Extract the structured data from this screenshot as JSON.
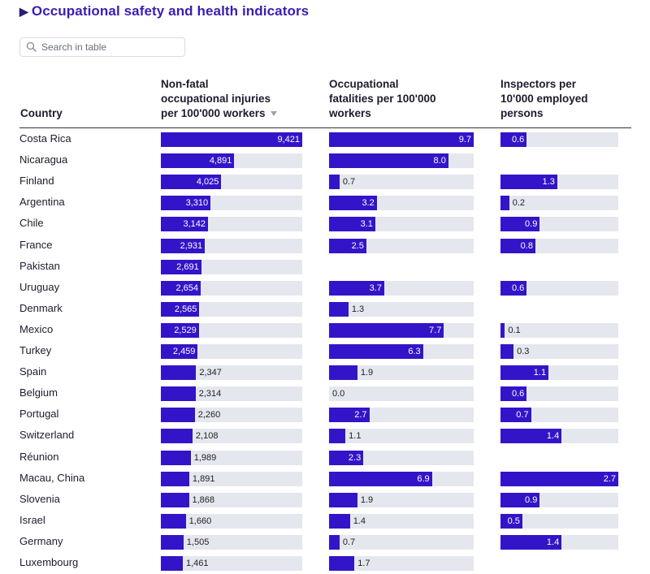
{
  "title": "Occupational safety and health indicators",
  "search": {
    "placeholder": "Search in table"
  },
  "headers": {
    "country": "Country",
    "injuries": [
      "Non-fatal",
      "occupational injuries",
      "per 100'000 workers"
    ],
    "fatalities": [
      "Occupational",
      "fatalities per 100'000",
      "workers"
    ],
    "inspectors": [
      "Inspectors per",
      "10'000 employed",
      "persons"
    ]
  },
  "rows": [
    {
      "country": "Costa Rica",
      "injuries": 9421,
      "injuries_label": "9,421",
      "fatalities": 9.7,
      "fatalities_label": "9.7",
      "inspectors": 0.6,
      "inspectors_label": "0.6"
    },
    {
      "country": "Nicaragua",
      "injuries": 4891,
      "injuries_label": "4,891",
      "fatalities": 8.0,
      "fatalities_label": "8.0",
      "inspectors": null,
      "inspectors_label": ""
    },
    {
      "country": "Finland",
      "injuries": 4025,
      "injuries_label": "4,025",
      "fatalities": 0.7,
      "fatalities_label": "0.7",
      "inspectors": 1.3,
      "inspectors_label": "1.3"
    },
    {
      "country": "Argentina",
      "injuries": 3310,
      "injuries_label": "3,310",
      "fatalities": 3.2,
      "fatalities_label": "3.2",
      "inspectors": 0.2,
      "inspectors_label": "0.2"
    },
    {
      "country": "Chile",
      "injuries": 3142,
      "injuries_label": "3,142",
      "fatalities": 3.1,
      "fatalities_label": "3.1",
      "inspectors": 0.9,
      "inspectors_label": "0.9"
    },
    {
      "country": "France",
      "injuries": 2931,
      "injuries_label": "2,931",
      "fatalities": 2.5,
      "fatalities_label": "2.5",
      "inspectors": 0.8,
      "inspectors_label": "0.8"
    },
    {
      "country": "Pakistan",
      "injuries": 2691,
      "injuries_label": "2,691",
      "fatalities": null,
      "fatalities_label": "",
      "inspectors": null,
      "inspectors_label": ""
    },
    {
      "country": "Uruguay",
      "injuries": 2654,
      "injuries_label": "2,654",
      "fatalities": 3.7,
      "fatalities_label": "3.7",
      "inspectors": 0.6,
      "inspectors_label": "0.6"
    },
    {
      "country": "Denmark",
      "injuries": 2565,
      "injuries_label": "2,565",
      "fatalities": 1.3,
      "fatalities_label": "1.3",
      "inspectors": null,
      "inspectors_label": ""
    },
    {
      "country": "Mexico",
      "injuries": 2529,
      "injuries_label": "2,529",
      "fatalities": 7.7,
      "fatalities_label": "7.7",
      "inspectors": 0.1,
      "inspectors_label": "0.1"
    },
    {
      "country": "Turkey",
      "injuries": 2459,
      "injuries_label": "2,459",
      "fatalities": 6.3,
      "fatalities_label": "6.3",
      "inspectors": 0.3,
      "inspectors_label": "0.3"
    },
    {
      "country": "Spain",
      "injuries": 2347,
      "injuries_label": "2,347",
      "fatalities": 1.9,
      "fatalities_label": "1.9",
      "inspectors": 1.1,
      "inspectors_label": "1.1"
    },
    {
      "country": "Belgium",
      "injuries": 2314,
      "injuries_label": "2,314",
      "fatalities": 0.0,
      "fatalities_label": "0.0",
      "inspectors": 0.6,
      "inspectors_label": "0.6"
    },
    {
      "country": "Portugal",
      "injuries": 2260,
      "injuries_label": "2,260",
      "fatalities": 2.7,
      "fatalities_label": "2.7",
      "inspectors": 0.7,
      "inspectors_label": "0.7"
    },
    {
      "country": "Switzerland",
      "injuries": 2108,
      "injuries_label": "2,108",
      "fatalities": 1.1,
      "fatalities_label": "1.1",
      "inspectors": 1.4,
      "inspectors_label": "1.4"
    },
    {
      "country": "Réunion",
      "injuries": 1989,
      "injuries_label": "1,989",
      "fatalities": 2.3,
      "fatalities_label": "2.3",
      "inspectors": null,
      "inspectors_label": ""
    },
    {
      "country": "Macau, China",
      "injuries": 1891,
      "injuries_label": "1,891",
      "fatalities": 6.9,
      "fatalities_label": "6.9",
      "inspectors": 2.7,
      "inspectors_label": "2.7"
    },
    {
      "country": "Slovenia",
      "injuries": 1868,
      "injuries_label": "1,868",
      "fatalities": 1.9,
      "fatalities_label": "1.9",
      "inspectors": 0.9,
      "inspectors_label": "0.9"
    },
    {
      "country": "Israel",
      "injuries": 1660,
      "injuries_label": "1,660",
      "fatalities": 1.4,
      "fatalities_label": "1.4",
      "inspectors": 0.5,
      "inspectors_label": "0.5"
    },
    {
      "country": "Germany",
      "injuries": 1505,
      "injuries_label": "1,505",
      "fatalities": 0.7,
      "fatalities_label": "0.7",
      "inspectors": 1.4,
      "inspectors_label": "1.4"
    },
    {
      "country": "Luxembourg",
      "injuries": 1461,
      "injuries_label": "1,461",
      "fatalities": 1.7,
      "fatalities_label": "1.7",
      "inspectors": null,
      "inspectors_label": ""
    }
  ],
  "scales": {
    "injuries_max": 9421,
    "fatalities_max": 9.7,
    "inspectors_max": 2.7
  },
  "colors": {
    "accent": "#3414c9",
    "title": "#3a1db3",
    "track": "#e5e7ee"
  }
}
